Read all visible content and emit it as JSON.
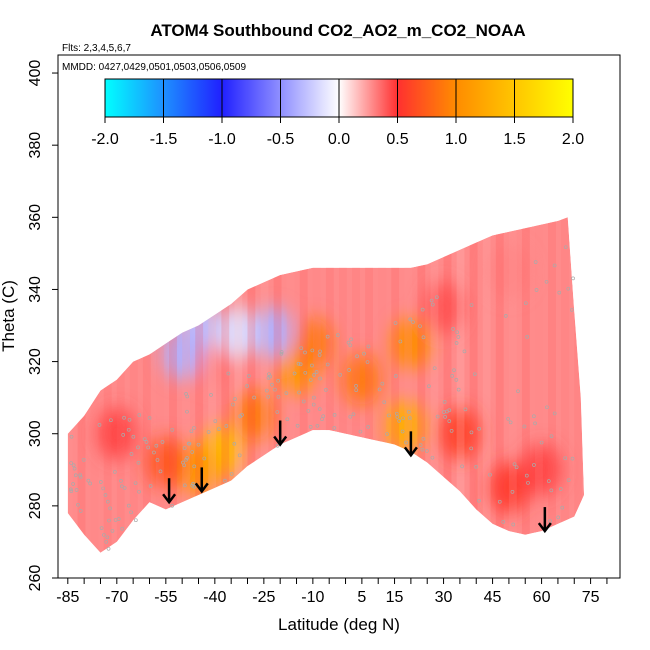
{
  "chart_data": {
    "type": "heatmap",
    "title": "ATOM4 Southbound CO2_AO2_m_CO2_NOAA",
    "flights_note": "Flts: 2,3,4,5,6,7",
    "dates_note": "MMDD: 0427,0429,0501,0503,0506,0509",
    "xlabel": "Latitude (deg N)",
    "ylabel": "Theta (C)",
    "xlim": [
      -88,
      84
    ],
    "ylim": [
      260,
      405
    ],
    "x_tick_labels": [
      "-85",
      "-70",
      "-55",
      "-40",
      "-25",
      "-10",
      "5",
      "15",
      "30",
      "45",
      "60",
      "75"
    ],
    "y_tick_labels": [
      "260",
      "280",
      "300",
      "320",
      "340",
      "360",
      "380",
      "400"
    ],
    "colorbar": {
      "range": [
        -2.0,
        2.0
      ],
      "tick_labels": [
        "-2.0",
        "-1.5",
        "-1.0",
        "-0.5",
        "0.0",
        "0.5",
        "1.0",
        "1.5",
        "2.0"
      ],
      "colors": [
        "#00ffff",
        "#1e90ff",
        "#2020ff",
        "#ffffff",
        "#ff3030",
        "#ff8c00",
        "#ffff00"
      ]
    },
    "lower_boundary": [
      [
        -85,
        278
      ],
      [
        -80,
        272
      ],
      [
        -75,
        267
      ],
      [
        -70,
        270
      ],
      [
        -65,
        276
      ],
      [
        -60,
        281
      ],
      [
        -55,
        279
      ],
      [
        -50,
        281
      ],
      [
        -45,
        283
      ],
      [
        -40,
        285
      ],
      [
        -35,
        287
      ],
      [
        -30,
        291
      ],
      [
        -25,
        294
      ],
      [
        -20,
        297
      ],
      [
        -15,
        299
      ],
      [
        -10,
        301
      ],
      [
        -5,
        301
      ],
      [
        0,
        300
      ],
      [
        5,
        299
      ],
      [
        10,
        298
      ],
      [
        15,
        297
      ],
      [
        20,
        295
      ],
      [
        25,
        292
      ],
      [
        30,
        288
      ],
      [
        35,
        284
      ],
      [
        40,
        279
      ],
      [
        45,
        275
      ],
      [
        50,
        273
      ],
      [
        55,
        272
      ],
      [
        60,
        273
      ],
      [
        65,
        275
      ],
      [
        70,
        277
      ]
    ],
    "upper_boundary": [
      [
        -85,
        300
      ],
      [
        -80,
        305
      ],
      [
        -75,
        312
      ],
      [
        -70,
        315
      ],
      [
        -65,
        320
      ],
      [
        -60,
        322
      ],
      [
        -55,
        325
      ],
      [
        -50,
        328
      ],
      [
        -45,
        330
      ],
      [
        -40,
        333
      ],
      [
        -35,
        336
      ],
      [
        -30,
        340
      ],
      [
        -25,
        342
      ],
      [
        -20,
        344
      ],
      [
        -15,
        345
      ],
      [
        -10,
        346
      ],
      [
        -5,
        346
      ],
      [
        0,
        346
      ],
      [
        5,
        346
      ],
      [
        10,
        346
      ],
      [
        15,
        346
      ],
      [
        20,
        346
      ],
      [
        25,
        347
      ],
      [
        30,
        349
      ],
      [
        35,
        351
      ],
      [
        40,
        353
      ],
      [
        45,
        355
      ],
      [
        50,
        356
      ],
      [
        55,
        357
      ],
      [
        60,
        358
      ],
      [
        65,
        359
      ],
      [
        68,
        360
      ],
      [
        70,
        334
      ],
      [
        72,
        310
      ],
      [
        73,
        283
      ]
    ],
    "hotspots": [
      {
        "lat": -38,
        "theta": 295,
        "value": 1.4
      },
      {
        "lat": -45,
        "theta": 290,
        "value": 1.1
      },
      {
        "lat": -28,
        "theta": 305,
        "value": 0.9
      },
      {
        "lat": -15,
        "theta": 318,
        "value": 1.1
      },
      {
        "lat": -10,
        "theta": 325,
        "value": 0.9
      },
      {
        "lat": 5,
        "theta": 315,
        "value": 0.9
      },
      {
        "lat": 18,
        "theta": 302,
        "value": 1.3
      },
      {
        "lat": 20,
        "theta": 325,
        "value": 1.0
      },
      {
        "lat": -55,
        "theta": 292,
        "value": 0.7
      },
      {
        "lat": -70,
        "theta": 300,
        "value": 0.45
      },
      {
        "lat": 35,
        "theta": 300,
        "value": 0.6
      },
      {
        "lat": 50,
        "theta": 285,
        "value": 0.55
      },
      {
        "lat": 60,
        "theta": 290,
        "value": 0.45
      },
      {
        "lat": 30,
        "theta": 335,
        "value": 0.4
      },
      {
        "lat": 50,
        "theta": 345,
        "value": 0.3
      },
      {
        "lat": -40,
        "theta": 320,
        "value": 0.3
      },
      {
        "lat": -45,
        "theta": 330,
        "value": -0.3
      },
      {
        "lat": -33,
        "theta": 328,
        "value": -0.15
      },
      {
        "lat": -50,
        "theta": 322,
        "value": -0.35
      },
      {
        "lat": -22,
        "theta": 328,
        "value": -0.35
      }
    ],
    "arrows": [
      {
        "lat": -54,
        "theta": 286
      },
      {
        "lat": -44,
        "theta": 289
      },
      {
        "lat": -20,
        "theta": 302
      },
      {
        "lat": 20,
        "theta": 299
      },
      {
        "lat": 61,
        "theta": 278
      }
    ]
  }
}
